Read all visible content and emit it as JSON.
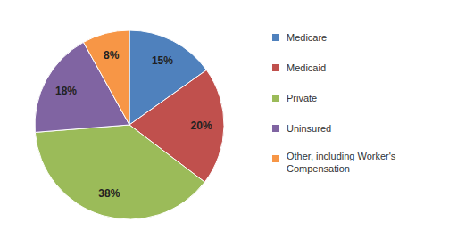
{
  "chart_data": {
    "type": "pie",
    "categories": [
      "Medicare",
      "Medicaid",
      "Private",
      "Uninsured",
      "Other, including Worker's Compensation"
    ],
    "values": [
      15,
      20,
      38,
      18,
      8
    ],
    "value_labels": [
      "15%",
      "20%",
      "38%",
      "18%",
      "8%"
    ],
    "colors": [
      "#4f81bd",
      "#c0504d",
      "#9bbb59",
      "#8064a2",
      "#f79646"
    ],
    "data_labels": true,
    "legend": "right"
  }
}
